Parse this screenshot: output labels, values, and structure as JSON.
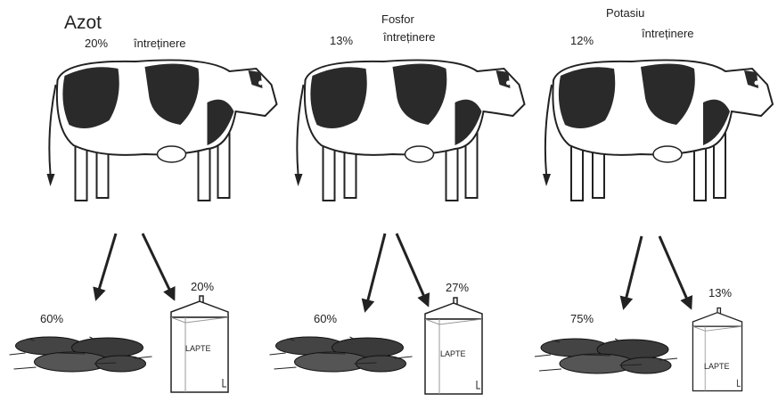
{
  "panels": [
    {
      "nutrient": "Azot",
      "maintenance_pct": "20%",
      "maintenance_label": "întreținere",
      "manure_pct": "60%",
      "milk_pct": "20%",
      "carton_label": "LAPTE"
    },
    {
      "nutrient": "Fosfor",
      "maintenance_pct": "13%",
      "maintenance_label": "întreținere",
      "manure_pct": "60%",
      "milk_pct": "27%",
      "carton_label": "LAPTE"
    },
    {
      "nutrient": "Potasiu",
      "maintenance_pct": "12%",
      "maintenance_label": "întreținere",
      "manure_pct": "75%",
      "milk_pct": "13%",
      "carton_label": "LAPTE"
    }
  ]
}
